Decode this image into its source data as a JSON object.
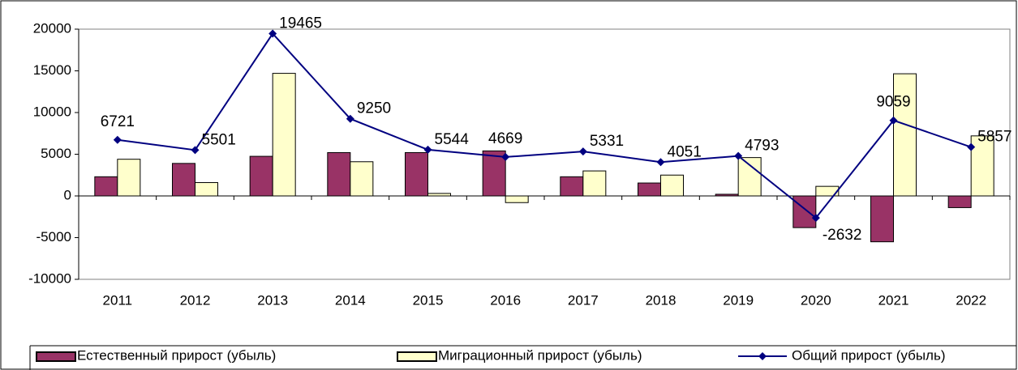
{
  "chart_data": {
    "type": "bar",
    "categories": [
      "2011",
      "2012",
      "2013",
      "2014",
      "2015",
      "2016",
      "2017",
      "2018",
      "2019",
      "2020",
      "2021",
      "2022"
    ],
    "series": [
      {
        "name": "Естественный прирост (убыль)",
        "color": "#993366",
        "type": "bar",
        "values": [
          2300,
          3900,
          4750,
          5200,
          5200,
          5400,
          2300,
          1550,
          200,
          -3800,
          -5500,
          -1400
        ]
      },
      {
        "name": "Миграционный прирост (убыль)",
        "color": "#ffffcc",
        "type": "bar",
        "values": [
          4400,
          1600,
          14700,
          4100,
          300,
          -800,
          3000,
          2500,
          4600,
          1150,
          14650,
          7200
        ]
      },
      {
        "name": "Общий прирост (убыль)",
        "color": "#000080",
        "type": "line",
        "values": [
          6721,
          5501,
          19465,
          9250,
          5544,
          4669,
          5331,
          4051,
          4793,
          -2632,
          9059,
          5857
        ]
      }
    ],
    "ylim": [
      -10000,
      20000
    ],
    "yticks": [
      -10000,
      -5000,
      0,
      5000,
      10000,
      15000,
      20000
    ],
    "grid": false,
    "legend": "bottom"
  }
}
